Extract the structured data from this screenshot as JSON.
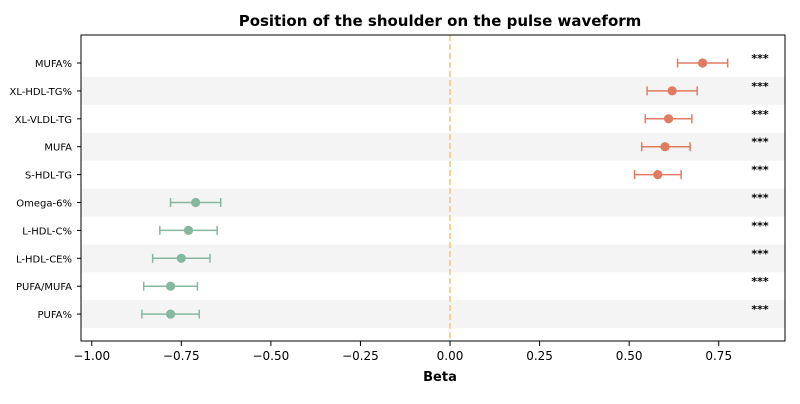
{
  "chart_data": {
    "type": "scatter",
    "title": "Position of the shoulder on the pulse waveform",
    "xlabel": "Beta",
    "ylabel": "",
    "xlim": [
      -1.03,
      0.935
    ],
    "xticks": [
      -1.0,
      -0.75,
      -0.5,
      -0.25,
      0.0,
      0.25,
      0.5,
      0.75
    ],
    "xtick_labels": [
      "−1.00",
      "−0.50",
      "−0.25",
      "0.00",
      "0.25",
      "0.50",
      "0.75",
      "−0.75"
    ],
    "xtick_labels_ordered": [
      "−1.00",
      "−0.75",
      "−0.50",
      "−0.25",
      "0.00",
      "0.25",
      "0.50",
      "0.75"
    ],
    "reference_line_x": 0.0,
    "grid": false,
    "alternating_row_bands": true,
    "colors": {
      "positive": "#e07b62",
      "negative": "#86b8a0",
      "reference": "#f5c585",
      "band": "#f4f4f4"
    },
    "points": [
      {
        "label": "MUFA%",
        "beta": 0.705,
        "ci_low": 0.635,
        "ci_high": 0.775,
        "sig": "***"
      },
      {
        "label": "XL-HDL-TG%",
        "beta": 0.62,
        "ci_low": 0.55,
        "ci_high": 0.69,
        "sig": "***"
      },
      {
        "label": "XL-VLDL-TG",
        "beta": 0.61,
        "ci_low": 0.545,
        "ci_high": 0.675,
        "sig": "***"
      },
      {
        "label": "MUFA",
        "beta": 0.6,
        "ci_low": 0.535,
        "ci_high": 0.67,
        "sig": "***"
      },
      {
        "label": "S-HDL-TG",
        "beta": 0.58,
        "ci_low": 0.515,
        "ci_high": 0.645,
        "sig": "***"
      },
      {
        "label": "Omega-6%",
        "beta": -0.71,
        "ci_low": -0.78,
        "ci_high": -0.64,
        "sig": "***"
      },
      {
        "label": "L-HDL-C%",
        "beta": -0.73,
        "ci_low": -0.81,
        "ci_high": -0.65,
        "sig": "***"
      },
      {
        "label": "L-HDL-CE%",
        "beta": -0.75,
        "ci_low": -0.83,
        "ci_high": -0.67,
        "sig": "***"
      },
      {
        "label": "PUFA/MUFA",
        "beta": -0.78,
        "ci_low": -0.855,
        "ci_high": -0.705,
        "sig": "***"
      },
      {
        "label": "PUFA%",
        "beta": -0.78,
        "ci_low": -0.86,
        "ci_high": -0.7,
        "sig": "***"
      }
    ]
  }
}
